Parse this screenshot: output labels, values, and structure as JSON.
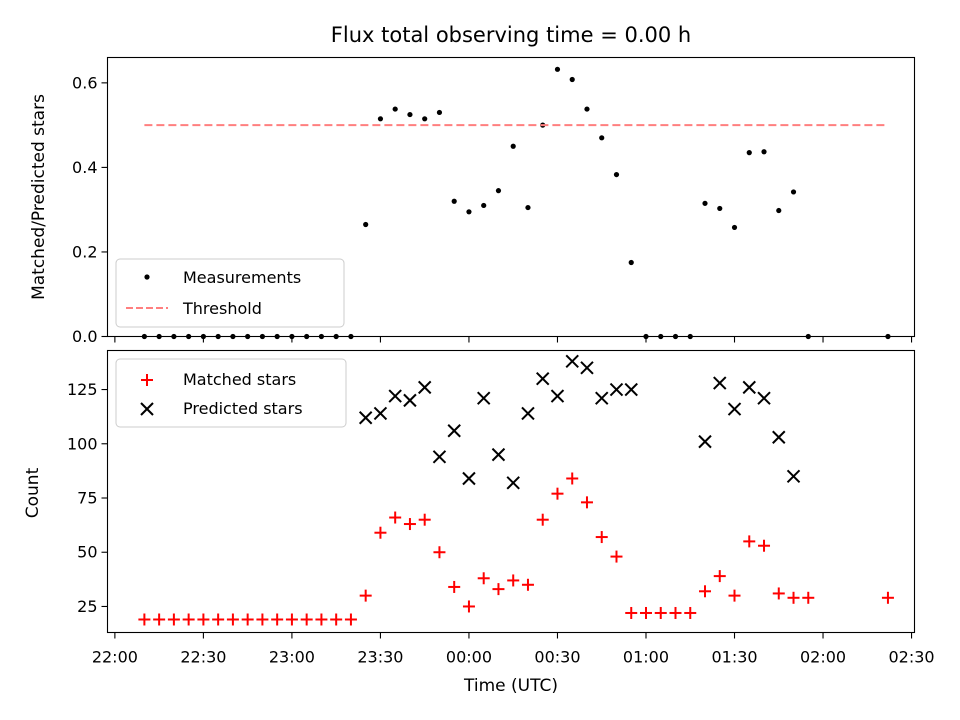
{
  "chart_data": {
    "title": "Flux total observing time = 0.00 h",
    "xlabel": "Time (UTC)",
    "x_ticks": [
      "22:00",
      "22:30",
      "23:00",
      "23:30",
      "00:00",
      "00:30",
      "01:00",
      "01:30",
      "02:00",
      "02:30"
    ],
    "x_tick_minutes": [
      0,
      30,
      60,
      90,
      120,
      150,
      180,
      210,
      240,
      270
    ],
    "xlim_minutes": [
      -2.5,
      271
    ],
    "x_origin_label": "22:00",
    "panels": [
      {
        "type": "scatter",
        "ylabel": "Matched/Predicted stars",
        "ylim": [
          0,
          0.66
        ],
        "y_ticks": [
          0.0,
          0.2,
          0.4,
          0.6
        ],
        "y_tick_labels": [
          "0.0",
          "0.2",
          "0.4",
          "0.6"
        ],
        "legend": {
          "position": "lower-left",
          "entries": [
            "Measurements",
            "Threshold"
          ]
        },
        "series": [
          {
            "name": "Measurements",
            "marker": "dot",
            "color": "#000000",
            "points": [
              [
                10,
                0
              ],
              [
                15,
                0
              ],
              [
                20,
                0
              ],
              [
                25,
                0
              ],
              [
                30,
                0
              ],
              [
                35,
                0
              ],
              [
                40,
                0
              ],
              [
                45,
                0
              ],
              [
                50,
                0
              ],
              [
                55,
                0
              ],
              [
                60,
                0
              ],
              [
                65,
                0
              ],
              [
                70,
                0
              ],
              [
                75,
                0
              ],
              [
                80,
                0
              ],
              [
                85,
                0.265
              ],
              [
                90,
                0.515
              ],
              [
                95,
                0.538
              ],
              [
                100,
                0.525
              ],
              [
                105,
                0.515
              ],
              [
                110,
                0.53
              ],
              [
                115,
                0.32
              ],
              [
                120,
                0.295
              ],
              [
                125,
                0.31
              ],
              [
                130,
                0.345
              ],
              [
                135,
                0.45
              ],
              [
                140,
                0.305
              ],
              [
                145,
                0.5
              ],
              [
                150,
                0.632
              ],
              [
                155,
                0.608
              ],
              [
                160,
                0.538
              ],
              [
                165,
                0.47
              ],
              [
                170,
                0.383
              ],
              [
                175,
                0.175
              ],
              [
                180,
                0
              ],
              [
                185,
                0
              ],
              [
                190,
                0
              ],
              [
                195,
                0
              ],
              [
                200,
                0.315
              ],
              [
                205,
                0.303
              ],
              [
                210,
                0.258
              ],
              [
                215,
                0.435
              ],
              [
                220,
                0.437
              ],
              [
                225,
                0.298
              ],
              [
                230,
                0.342
              ],
              [
                235,
                0
              ],
              [
                262,
                0
              ]
            ]
          },
          {
            "name": "Threshold",
            "type": "line",
            "style": "dashed",
            "color": "#ff7f7f",
            "points": [
              [
                10,
                0.5
              ],
              [
                262,
                0.5
              ]
            ]
          }
        ]
      },
      {
        "type": "scatter",
        "ylabel": "Count",
        "ylim": [
          13,
          143
        ],
        "y_ticks": [
          25,
          50,
          75,
          100,
          125
        ],
        "y_tick_labels": [
          "25",
          "50",
          "75",
          "100",
          "125"
        ],
        "legend": {
          "position": "top-left",
          "entries": [
            "Matched stars",
            "Predicted stars"
          ]
        },
        "series": [
          {
            "name": "Matched stars",
            "marker": "plus",
            "color": "#ff0000",
            "points": [
              [
                10,
                19
              ],
              [
                15,
                19
              ],
              [
                20,
                19
              ],
              [
                25,
                19
              ],
              [
                30,
                19
              ],
              [
                35,
                19
              ],
              [
                40,
                19
              ],
              [
                45,
                19
              ],
              [
                50,
                19
              ],
              [
                55,
                19
              ],
              [
                60,
                19
              ],
              [
                65,
                19
              ],
              [
                70,
                19
              ],
              [
                75,
                19
              ],
              [
                80,
                19
              ],
              [
                85,
                30
              ],
              [
                90,
                59
              ],
              [
                95,
                66
              ],
              [
                100,
                63
              ],
              [
                105,
                65
              ],
              [
                110,
                50
              ],
              [
                115,
                34
              ],
              [
                120,
                25
              ],
              [
                125,
                38
              ],
              [
                130,
                33
              ],
              [
                135,
                37
              ],
              [
                140,
                35
              ],
              [
                145,
                65
              ],
              [
                150,
                77
              ],
              [
                155,
                84
              ],
              [
                160,
                73
              ],
              [
                165,
                57
              ],
              [
                170,
                48
              ],
              [
                175,
                22
              ],
              [
                180,
                22
              ],
              [
                185,
                22
              ],
              [
                190,
                22
              ],
              [
                195,
                22
              ],
              [
                200,
                32
              ],
              [
                205,
                39
              ],
              [
                210,
                30
              ],
              [
                215,
                55
              ],
              [
                220,
                53
              ],
              [
                225,
                31
              ],
              [
                230,
                29
              ],
              [
                235,
                29
              ],
              [
                262,
                29
              ]
            ]
          },
          {
            "name": "Predicted stars",
            "marker": "x",
            "color": "#000000",
            "points": [
              [
                85,
                112
              ],
              [
                90,
                114
              ],
              [
                95,
                122
              ],
              [
                100,
                120
              ],
              [
                105,
                126
              ],
              [
                110,
                94
              ],
              [
                115,
                106
              ],
              [
                120,
                84
              ],
              [
                125,
                121
              ],
              [
                130,
                95
              ],
              [
                135,
                82
              ],
              [
                140,
                114
              ],
              [
                145,
                130
              ],
              [
                150,
                122
              ],
              [
                155,
                138
              ],
              [
                160,
                135
              ],
              [
                165,
                121
              ],
              [
                170,
                125
              ],
              [
                175,
                125
              ],
              [
                200,
                101
              ],
              [
                205,
                128
              ],
              [
                210,
                116
              ],
              [
                215,
                126
              ],
              [
                220,
                121
              ],
              [
                225,
                103
              ],
              [
                230,
                85
              ]
            ]
          }
        ]
      }
    ]
  }
}
